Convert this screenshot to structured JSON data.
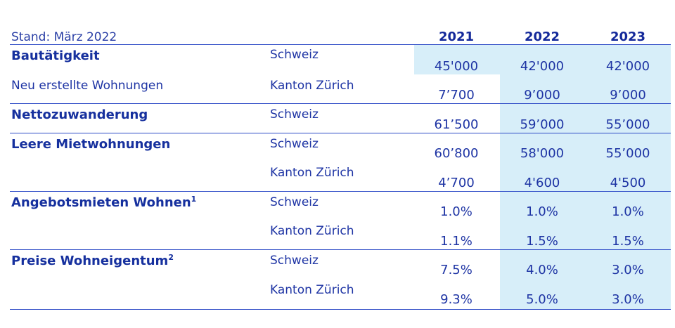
{
  "header": {
    "stand": "Stand: März 2022",
    "years": [
      "2021",
      "2022",
      "2023"
    ]
  },
  "rows": [
    {
      "category": "Bautätigkeit",
      "region": "Schweiz",
      "values": [
        "45'000",
        "42'000",
        "42'000"
      ]
    },
    {
      "subcategory": "Neu erstellte Wohnungen",
      "region": "Kanton Zürich",
      "values": [
        "7’700",
        "9’000",
        "9’000"
      ]
    },
    {
      "category": "Nettozuwanderung",
      "region": "Schweiz",
      "values": [
        "61’500",
        "59’000",
        "55’000"
      ]
    },
    {
      "category": "Leere Mietwohnungen",
      "region": "Schweiz",
      "values": [
        "60’800",
        "58'000",
        "55’000"
      ]
    },
    {
      "region": "Kanton Zürich",
      "values": [
        "4’700",
        "4'600",
        "4'500"
      ]
    },
    {
      "category": "Angebotsmieten Wohnen",
      "footnote": "1",
      "region": "Schweiz",
      "values": [
        "1.0%",
        "1.0%",
        "1.0%"
      ]
    },
    {
      "region": "Kanton Zürich",
      "values": [
        "1.1%",
        "1.5%",
        "1.5%"
      ]
    },
    {
      "category": "Preise Wohneigentum",
      "footnote": "2",
      "region": "Schweiz",
      "values": [
        "7.5%",
        "4.0%",
        "3.0%"
      ]
    },
    {
      "region": "Kanton Zürich",
      "values": [
        "9.3%",
        "5.0%",
        "3.0%"
      ]
    }
  ],
  "colors": {
    "text": "#1d2f9e",
    "rule": "#2c49c6",
    "shade": "#d7eef9"
  }
}
